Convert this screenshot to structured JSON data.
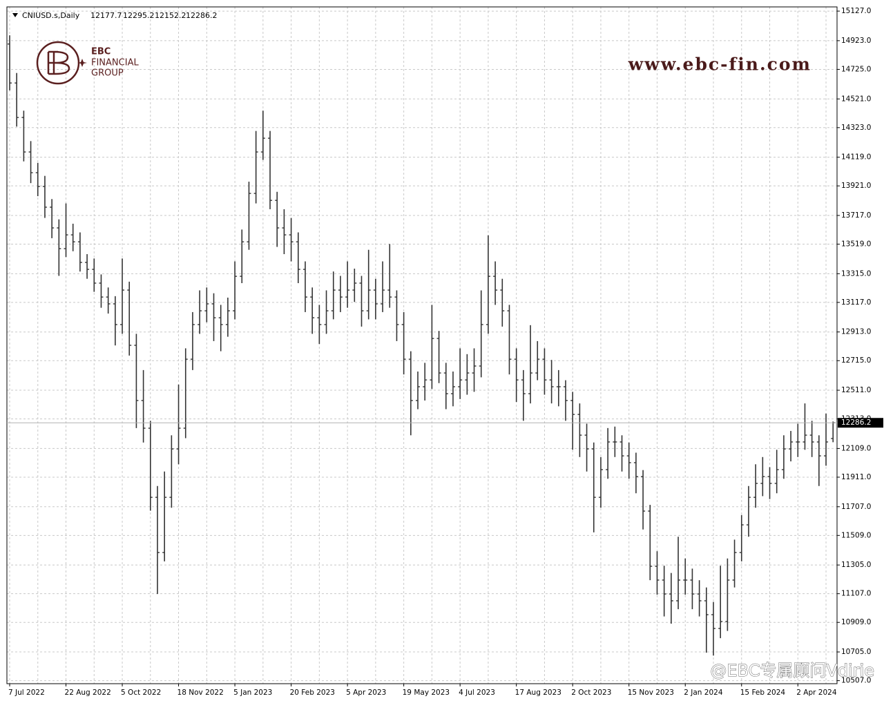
{
  "chart_data": {
    "type": "ohlc",
    "symbol": "CNIUSD.s,Daily",
    "logo": {
      "name": "EBC",
      "line1": "FINANCIAL",
      "line2": "GROUP"
    },
    "website": "www.ebc-fin.com",
    "watermark": "@EBC专属顾问Vdirie",
    "color": "#333333",
    "current_line_color": "#b0b0b0",
    "grid": true,
    "ylim": [
      10486,
      15156
    ],
    "yticks": [
      {
        "value": 15127,
        "label": "15127.0"
      },
      {
        "value": 14923,
        "label": "14923.0"
      },
      {
        "value": 14725,
        "label": "14725.0"
      },
      {
        "value": 14521,
        "label": "14521.0"
      },
      {
        "value": 14323,
        "label": "14323.0"
      },
      {
        "value": 14119,
        "label": "14119.0"
      },
      {
        "value": 13921,
        "label": "13921.0"
      },
      {
        "value": 13717,
        "label": "13717.0"
      },
      {
        "value": 13519,
        "label": "13519.0"
      },
      {
        "value": 13315,
        "label": "13315.0"
      },
      {
        "value": 13117,
        "label": "13117.0"
      },
      {
        "value": 12913,
        "label": "12913.0"
      },
      {
        "value": 12715,
        "label": "12715.0"
      },
      {
        "value": 12511,
        "label": "12511.0"
      },
      {
        "value": 12313,
        "label": "12313.0"
      },
      {
        "value": 12109,
        "label": "12109.0"
      },
      {
        "value": 11911,
        "label": "11911.0"
      },
      {
        "value": 11707,
        "label": "11707.0"
      },
      {
        "value": 11509,
        "label": "11509.0"
      },
      {
        "value": 11305,
        "label": "11305.0"
      },
      {
        "value": 11107,
        "label": "11107.0"
      },
      {
        "value": 10909,
        "label": "10909.0"
      },
      {
        "value": 10705,
        "label": "10705.0"
      },
      {
        "value": 10507,
        "label": "10507.0"
      }
    ],
    "categories": [
      "7 Jul 2022",
      null,
      null,
      null,
      null,
      null,
      null,
      null,
      "22 Aug 2022",
      null,
      null,
      null,
      null,
      null,
      null,
      null,
      "5 Oct 2022",
      null,
      null,
      null,
      null,
      null,
      null,
      null,
      "18 Nov 2022",
      null,
      null,
      null,
      null,
      null,
      null,
      null,
      "5 Jan 2023",
      null,
      null,
      null,
      null,
      null,
      null,
      null,
      "20 Feb 2023",
      null,
      null,
      null,
      null,
      null,
      null,
      null,
      "5 Apr 2023",
      null,
      null,
      null,
      null,
      null,
      null,
      null,
      "19 May 2023",
      null,
      null,
      null,
      null,
      null,
      null,
      null,
      "4 Jul 2023",
      null,
      null,
      null,
      null,
      null,
      null,
      null,
      "17 Aug 2023",
      null,
      null,
      null,
      null,
      null,
      null,
      null,
      "2 Oct 2023",
      null,
      null,
      null,
      null,
      null,
      null,
      null,
      "15 Nov 2023",
      null,
      null,
      null,
      null,
      null,
      null,
      null,
      "2 Jan 2024",
      null,
      null,
      null,
      null,
      null,
      null,
      null,
      "15 Feb 2024",
      null,
      null,
      null,
      null,
      null,
      null,
      null,
      "2 Apr 2024",
      null,
      null,
      null,
      null,
      null
    ],
    "open": [
      14900,
      14631,
      14393,
      14155,
      14012,
      13917,
      13774,
      13631,
      13488,
      13583,
      13535,
      13393,
      13345,
      13250,
      13154,
      13107,
      12964,
      13202,
      12821,
      12440,
      12249,
      11772,
      11391,
      11772,
      12106,
      12249,
      12725,
      12964,
      13059,
      13107,
      13011,
      12964,
      13059,
      13297,
      13535,
      13869,
      14155,
      14250,
      13821,
      13631,
      13583,
      13535,
      13345,
      13154,
      13011,
      12964,
      13059,
      13202,
      13154,
      13202,
      13250,
      13059,
      13202,
      13107,
      13202,
      13154,
      12964,
      12725,
      12440,
      12535,
      12582,
      12868,
      12630,
      12487,
      12535,
      12582,
      12630,
      12678,
      12964,
      13297,
      13202,
      13059,
      12725,
      12582,
      12487,
      12630,
      12725,
      12582,
      12535,
      12535,
      12440,
      12344,
      12201,
      12106,
      11772,
      11963,
      12154,
      12154,
      12058,
      12011,
      11915,
      11677,
      11296,
      11201,
      11105,
      11058,
      11201,
      11201,
      11105,
      11058,
      10962,
      10867,
      10915,
      11201,
      11391,
      11582,
      11772,
      11868,
      11915,
      11868,
      11963,
      12106,
      12154,
      12154,
      12201,
      12154,
      12058,
      12177.7
    ],
    "high": [
      14960,
      14700,
      14440,
      14230,
      14080,
      13990,
      13830,
      13690,
      13800,
      13660,
      13600,
      13450,
      13420,
      13310,
      13220,
      13160,
      13420,
      13260,
      12900,
      12650,
      12300,
      11850,
      11950,
      12200,
      12550,
      12800,
      13050,
      13200,
      13220,
      13180,
      13100,
      13150,
      13400,
      13620,
      13950,
      14300,
      14440,
      14300,
      13880,
      13760,
      13700,
      13600,
      13400,
      13220,
      13100,
      13200,
      13330,
      13300,
      13400,
      13350,
      13300,
      13480,
      13280,
      13400,
      13520,
      13200,
      13050,
      12780,
      12640,
      12700,
      13100,
      12920,
      12700,
      12640,
      12800,
      12760,
      12800,
      13200,
      13580,
      13400,
      13280,
      13100,
      12800,
      12650,
      12960,
      12850,
      12800,
      12720,
      12650,
      12580,
      12500,
      12420,
      12280,
      12150,
      12050,
      12250,
      12260,
      12200,
      12150,
      12080,
      11960,
      11720,
      11400,
      11300,
      11250,
      11500,
      11350,
      11280,
      11200,
      11150,
      11050,
      11300,
      11350,
      11480,
      11650,
      11850,
      12000,
      12050,
      11980,
      12100,
      12200,
      12230,
      12280,
      12420,
      12300,
      12200,
      12350,
      12295.2
    ],
    "low": [
      14580,
      14330,
      14090,
      13940,
      13850,
      13700,
      13560,
      13300,
      13430,
      13470,
      13330,
      13280,
      13190,
      13080,
      13040,
      12820,
      12900,
      12750,
      12250,
      12150,
      11680,
      11105,
      11330,
      11700,
      12000,
      12180,
      12650,
      12900,
      12980,
      12850,
      12780,
      12880,
      13000,
      13250,
      13480,
      13800,
      14100,
      13760,
      13500,
      13450,
      13400,
      13250,
      13050,
      12900,
      12830,
      12900,
      13000,
      13050,
      13080,
      13120,
      12950,
      13000,
      13000,
      13050,
      13080,
      12850,
      12620,
      12200,
      12380,
      12440,
      12520,
      12560,
      12380,
      12400,
      12450,
      12480,
      12500,
      12600,
      12900,
      13100,
      12950,
      12620,
      12430,
      12300,
      12420,
      12580,
      12480,
      12420,
      12400,
      12300,
      12100,
      12050,
      11950,
      11530,
      11700,
      11900,
      12050,
      11950,
      11900,
      11800,
      11550,
      11200,
      11100,
      10950,
      10900,
      11000,
      11100,
      11000,
      10950,
      10700,
      10680,
      10800,
      10850,
      11150,
      11330,
      11500,
      11700,
      11780,
      11760,
      11800,
      11900,
      12020,
      12050,
      12100,
      12050,
      11850,
      11990,
      12152.2
    ],
    "close": [
      14631,
      14393,
      14155,
      14012,
      13917,
      13774,
      13631,
      13488,
      13583,
      13535,
      13393,
      13345,
      13250,
      13154,
      13107,
      12964,
      13202,
      12821,
      12440,
      12249,
      11772,
      11391,
      11772,
      12106,
      12249,
      12725,
      12964,
      13059,
      13107,
      13011,
      12964,
      13059,
      13297,
      13535,
      13869,
      14155,
      14250,
      13821,
      13631,
      13583,
      13535,
      13345,
      13154,
      13011,
      12964,
      13059,
      13202,
      13154,
      13202,
      13250,
      13059,
      13202,
      13107,
      13202,
      13154,
      12964,
      12725,
      12440,
      12535,
      12582,
      12868,
      12630,
      12487,
      12535,
      12582,
      12630,
      12678,
      12964,
      13297,
      13202,
      13059,
      12725,
      12582,
      12487,
      12630,
      12725,
      12582,
      12535,
      12535,
      12440,
      12344,
      12201,
      12106,
      11772,
      11963,
      12154,
      12154,
      12058,
      12011,
      11915,
      11677,
      11296,
      11201,
      11105,
      11058,
      11201,
      11201,
      11105,
      11058,
      10962,
      10867,
      10915,
      11201,
      11391,
      11582,
      11772,
      11868,
      11915,
      11868,
      11963,
      12106,
      12154,
      12154,
      12201,
      12154,
      12058,
      12154,
      12286.2
    ]
  }
}
